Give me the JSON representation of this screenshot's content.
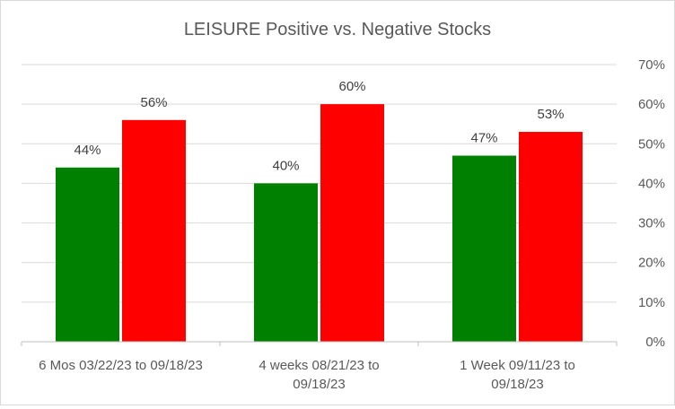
{
  "chart_data": {
    "type": "bar",
    "title": "LEISURE Positive vs. Negative Stocks",
    "categories": [
      [
        "6 Mos 03/22/23 to 09/18/23"
      ],
      [
        "4 weeks 08/21/23 to",
        "09/18/23"
      ],
      [
        "1 Week 09/11/23 to",
        "09/18/23"
      ]
    ],
    "series": [
      {
        "name": "Positive",
        "color": "#008000",
        "values": [
          44,
          40,
          47
        ],
        "labels": [
          "44%",
          "40%",
          "47%"
        ]
      },
      {
        "name": "Negative",
        "color": "#ff0000",
        "values": [
          56,
          60,
          53
        ],
        "labels": [
          "56%",
          "60%",
          "53%"
        ]
      }
    ],
    "y_axis": {
      "position": "right",
      "ylim": [
        0,
        70
      ],
      "ticks": [
        0,
        10,
        20,
        30,
        40,
        50,
        60,
        70
      ],
      "tick_labels": [
        "0%",
        "10%",
        "20%",
        "30%",
        "40%",
        "50%",
        "60%",
        "70%"
      ]
    },
    "xlabel": "",
    "ylabel": "",
    "grid": true,
    "legend": "none",
    "colors": {
      "grid": "#d9d9d9",
      "axis": "#bfbfbf",
      "text": "#595959"
    }
  }
}
